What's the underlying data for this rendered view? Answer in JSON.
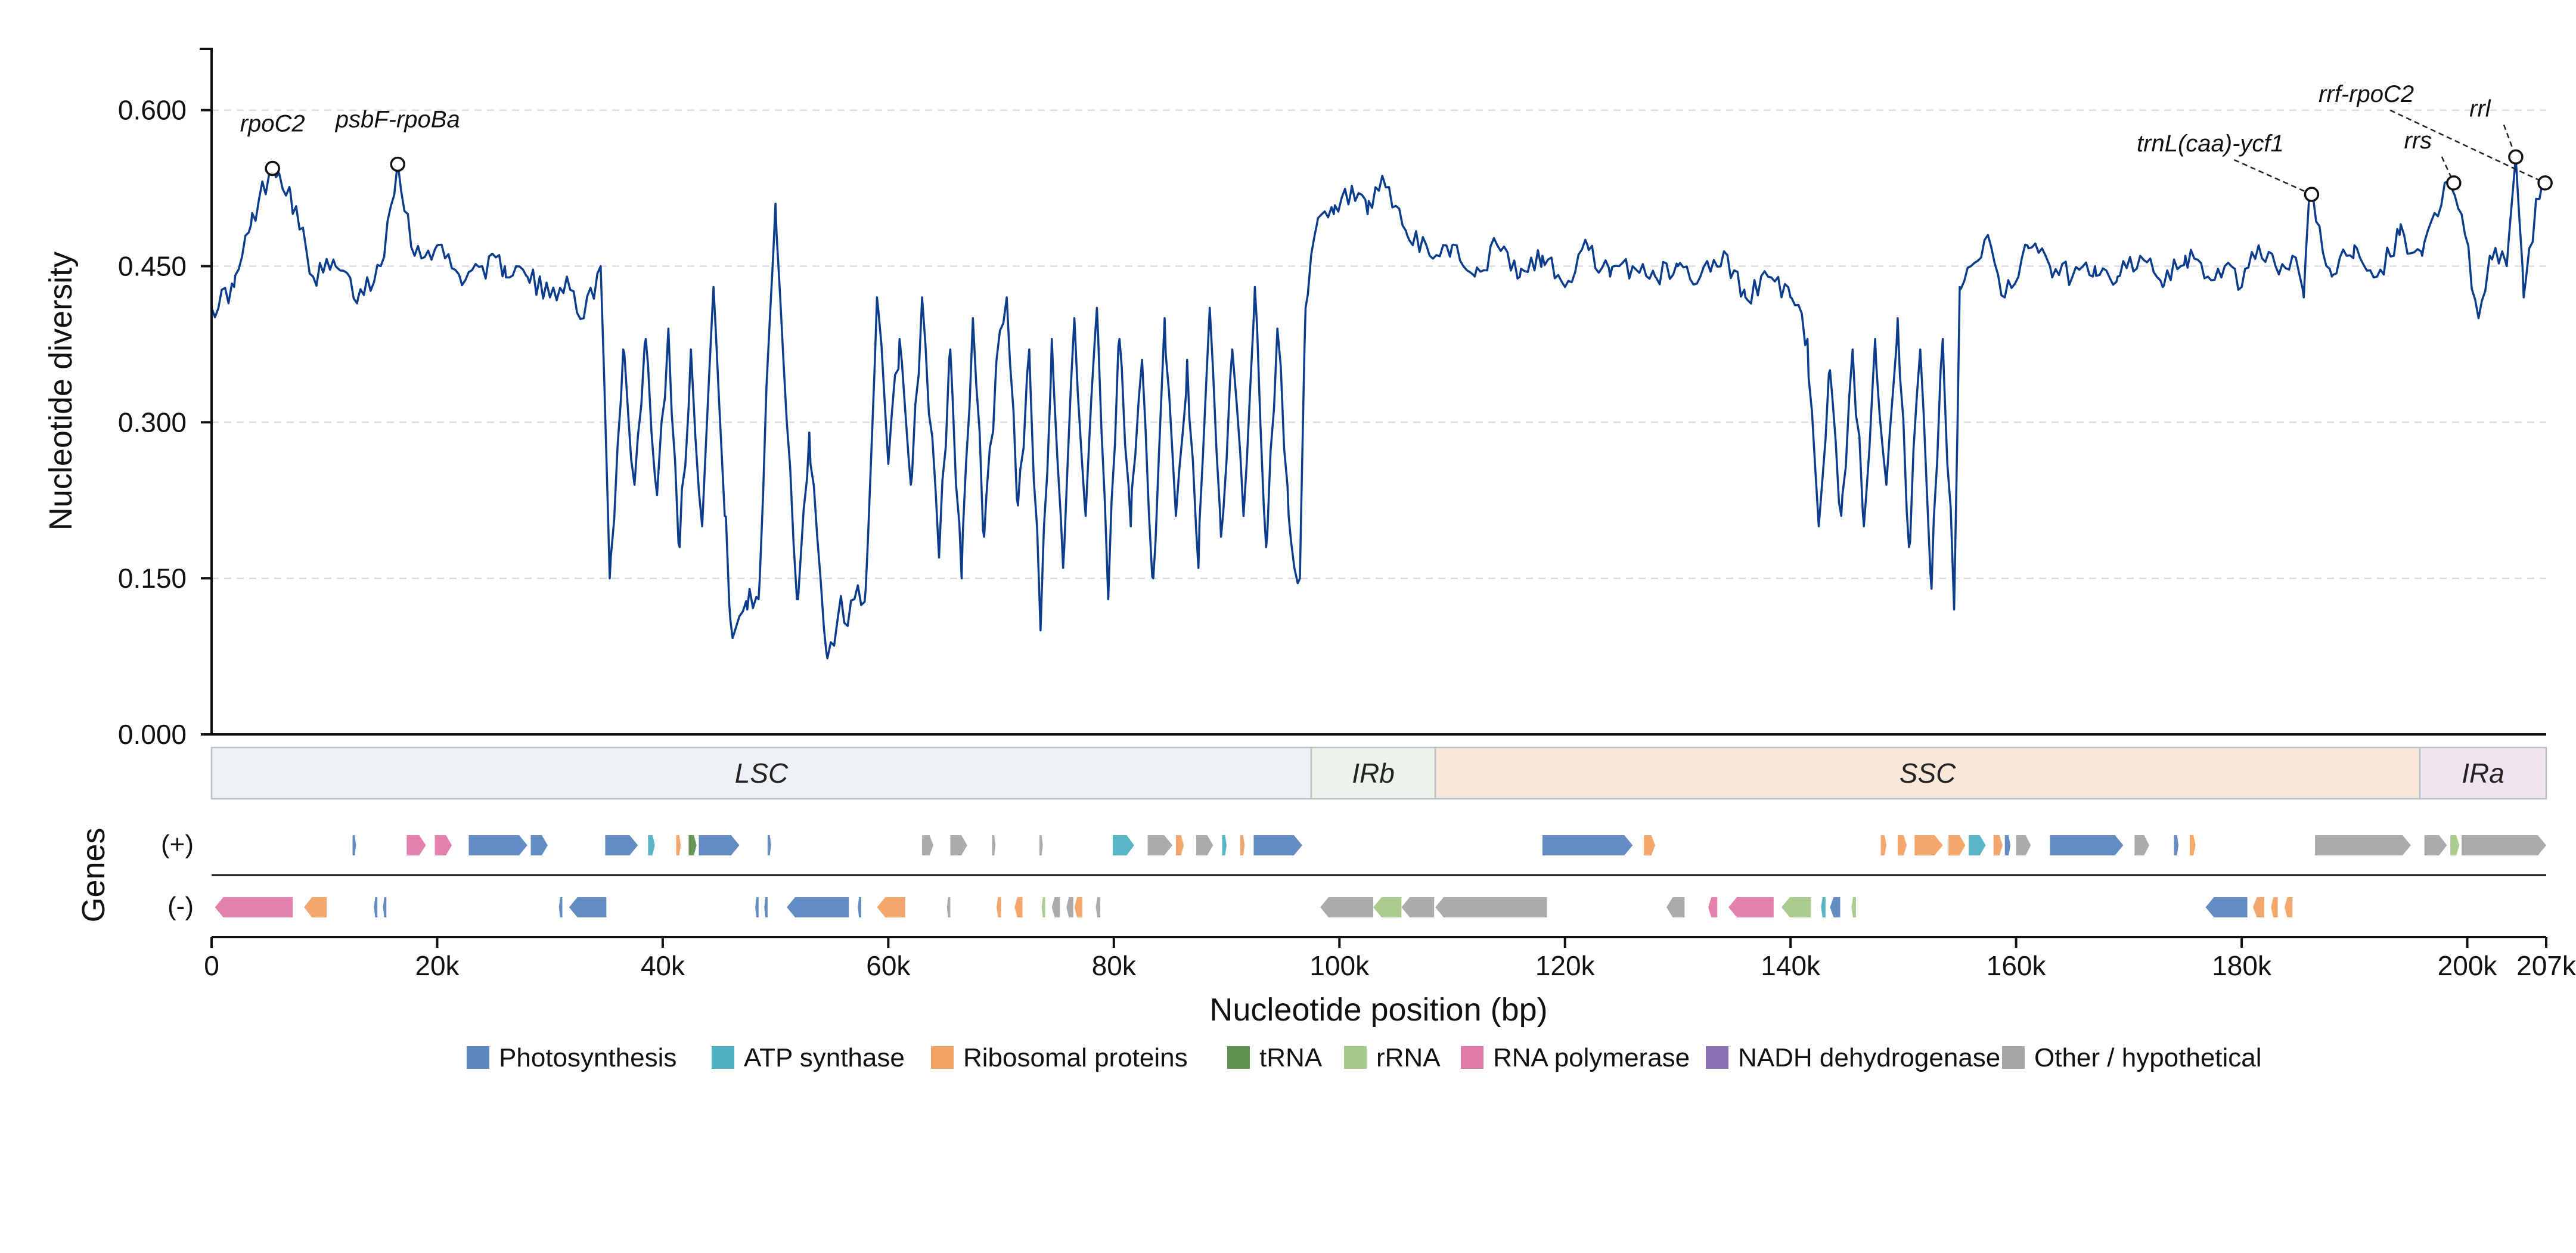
{
  "chart_data": {
    "type": "line",
    "xlabel": "Nucleotide position (bp)",
    "ylabel": "Nucleotide diversity",
    "genes_label": "Genes",
    "strand_labels": [
      "(+)",
      "(-)"
    ],
    "xlim": [
      0,
      207000
    ],
    "ylim": [
      0,
      0.66
    ],
    "y_ticks": [
      0.0,
      0.15,
      0.3,
      0.45,
      0.6
    ],
    "y_tick_labels": [
      "0.000",
      "0.150",
      "0.300",
      "0.450",
      "0.600"
    ],
    "x_ticks": [
      0,
      20000,
      40000,
      60000,
      80000,
      100000,
      120000,
      140000,
      160000,
      180000,
      200000,
      207000
    ],
    "x_tick_labels": [
      "0",
      "20k",
      "40k",
      "60k",
      "80k",
      "100k",
      "120k",
      "140k",
      "160k",
      "180k",
      "200k",
      "207k"
    ],
    "grid": "horizontal dashed",
    "line_color": "#0b3d8c",
    "keypoints": [
      [
        0,
        0.41
      ],
      [
        2000,
        0.43
      ],
      [
        3500,
        0.49
      ],
      [
        5400,
        0.55
      ],
      [
        7000,
        0.52
      ],
      [
        9000,
        0.44
      ],
      [
        11000,
        0.45
      ],
      [
        13000,
        0.42
      ],
      [
        15000,
        0.45
      ],
      [
        16500,
        0.55
      ],
      [
        18000,
        0.46
      ],
      [
        20000,
        0.47
      ],
      [
        22000,
        0.44
      ],
      [
        24000,
        0.45
      ],
      [
        26000,
        0.45
      ],
      [
        28000,
        0.44
      ],
      [
        30000,
        0.42
      ],
      [
        31500,
        0.44
      ],
      [
        33000,
        0.4
      ],
      [
        34500,
        0.45
      ],
      [
        35300,
        0.15
      ],
      [
        36500,
        0.37
      ],
      [
        37500,
        0.24
      ],
      [
        38500,
        0.38
      ],
      [
        39500,
        0.23
      ],
      [
        40500,
        0.39
      ],
      [
        41500,
        0.18
      ],
      [
        42500,
        0.37
      ],
      [
        43500,
        0.2
      ],
      [
        44500,
        0.43
      ],
      [
        45500,
        0.21
      ],
      [
        46000,
        0.11
      ],
      [
        47500,
        0.12
      ],
      [
        48500,
        0.13
      ],
      [
        49500,
        0.4
      ],
      [
        50000,
        0.51
      ],
      [
        51000,
        0.3
      ],
      [
        52000,
        0.13
      ],
      [
        53000,
        0.29
      ],
      [
        54500,
        0.08
      ],
      [
        55500,
        0.11
      ],
      [
        57000,
        0.13
      ],
      [
        58000,
        0.14
      ],
      [
        59000,
        0.42
      ],
      [
        60000,
        0.26
      ],
      [
        61000,
        0.38
      ],
      [
        62000,
        0.24
      ],
      [
        63000,
        0.42
      ],
      [
        64500,
        0.17
      ],
      [
        65500,
        0.37
      ],
      [
        66500,
        0.15
      ],
      [
        67500,
        0.4
      ],
      [
        68500,
        0.19
      ],
      [
        69500,
        0.34
      ],
      [
        70500,
        0.42
      ],
      [
        71500,
        0.22
      ],
      [
        72500,
        0.37
      ],
      [
        73500,
        0.1
      ],
      [
        74500,
        0.38
      ],
      [
        75500,
        0.16
      ],
      [
        76500,
        0.4
      ],
      [
        77500,
        0.21
      ],
      [
        78500,
        0.41
      ],
      [
        79500,
        0.13
      ],
      [
        80500,
        0.38
      ],
      [
        81500,
        0.2
      ],
      [
        82500,
        0.36
      ],
      [
        83500,
        0.15
      ],
      [
        84500,
        0.4
      ],
      [
        85500,
        0.21
      ],
      [
        86500,
        0.36
      ],
      [
        87500,
        0.16
      ],
      [
        88500,
        0.41
      ],
      [
        89500,
        0.19
      ],
      [
        90500,
        0.37
      ],
      [
        91500,
        0.21
      ],
      [
        92500,
        0.43
      ],
      [
        93500,
        0.18
      ],
      [
        94500,
        0.39
      ],
      [
        95500,
        0.21
      ],
      [
        96500,
        0.15
      ],
      [
        97000,
        0.41
      ],
      [
        98000,
        0.49
      ],
      [
        99500,
        0.5
      ],
      [
        101000,
        0.52
      ],
      [
        102500,
        0.5
      ],
      [
        104000,
        0.53
      ],
      [
        106000,
        0.48
      ],
      [
        108000,
        0.46
      ],
      [
        110000,
        0.47
      ],
      [
        112000,
        0.44
      ],
      [
        114000,
        0.47
      ],
      [
        116000,
        0.44
      ],
      [
        118000,
        0.46
      ],
      [
        120000,
        0.43
      ],
      [
        122000,
        0.47
      ],
      [
        124000,
        0.44
      ],
      [
        126000,
        0.45
      ],
      [
        128000,
        0.44
      ],
      [
        130000,
        0.45
      ],
      [
        132000,
        0.44
      ],
      [
        134000,
        0.46
      ],
      [
        136000,
        0.42
      ],
      [
        138000,
        0.44
      ],
      [
        140000,
        0.42
      ],
      [
        141500,
        0.38
      ],
      [
        142500,
        0.2
      ],
      [
        143500,
        0.35
      ],
      [
        144500,
        0.21
      ],
      [
        145500,
        0.37
      ],
      [
        146500,
        0.2
      ],
      [
        147500,
        0.38
      ],
      [
        148500,
        0.24
      ],
      [
        149500,
        0.4
      ],
      [
        150500,
        0.18
      ],
      [
        151500,
        0.37
      ],
      [
        152500,
        0.14
      ],
      [
        153500,
        0.38
      ],
      [
        154500,
        0.12
      ],
      [
        155000,
        0.43
      ],
      [
        156000,
        0.45
      ],
      [
        157500,
        0.48
      ],
      [
        159000,
        0.42
      ],
      [
        161000,
        0.47
      ],
      [
        163000,
        0.45
      ],
      [
        165000,
        0.44
      ],
      [
        167000,
        0.45
      ],
      [
        169000,
        0.44
      ],
      [
        171000,
        0.46
      ],
      [
        173000,
        0.43
      ],
      [
        175000,
        0.46
      ],
      [
        177000,
        0.44
      ],
      [
        178500,
        0.45
      ],
      [
        180000,
        0.43
      ],
      [
        181500,
        0.47
      ],
      [
        183000,
        0.45
      ],
      [
        184500,
        0.46
      ],
      [
        185500,
        0.42
      ],
      [
        186000,
        0.52
      ],
      [
        188000,
        0.44
      ],
      [
        190000,
        0.47
      ],
      [
        192000,
        0.44
      ],
      [
        194000,
        0.48
      ],
      [
        196000,
        0.46
      ],
      [
        198000,
        0.53
      ],
      [
        199500,
        0.5
      ],
      [
        201000,
        0.4
      ],
      [
        202000,
        0.46
      ],
      [
        203500,
        0.45
      ],
      [
        204300,
        0.555
      ],
      [
        205000,
        0.42
      ],
      [
        206000,
        0.5
      ],
      [
        207000,
        0.53
      ]
    ],
    "peaks": [
      {
        "label": "rpoC2",
        "x": 5400,
        "y": 0.544
      },
      {
        "label": "psbF-rpoBa",
        "x": 16500,
        "y": 0.548
      },
      {
        "label": "trnL(caa)-ycf1",
        "x": 186200,
        "y": 0.519
      },
      {
        "label": "rrs",
        "x": 198800,
        "y": 0.53
      },
      {
        "label": "rrf-rpoC2",
        "x": 206900,
        "y": 0.53
      },
      {
        "label": "rrl",
        "x": 204300,
        "y": 0.555
      }
    ],
    "regions": [
      {
        "label": "LSC",
        "start": 0,
        "end": 97500,
        "color": "#eef2f5"
      },
      {
        "label": "IRb",
        "start": 97500,
        "end": 108500,
        "color": "#ecf3ea"
      },
      {
        "label": "SSC",
        "start": 108500,
        "end": 195800,
        "color": "#f8e8da"
      },
      {
        "label": "IRa",
        "start": 195800,
        "end": 207000,
        "color": "#eee5ef"
      }
    ],
    "legend": [
      {
        "label": "Photosynthesis",
        "color": "#5b86c0"
      },
      {
        "label": "ATP synthase",
        "color": "#4fb2c4"
      },
      {
        "label": "Ribosomal proteins",
        "color": "#f2a264"
      },
      {
        "label": "tRNA",
        "color": "#5f9150"
      },
      {
        "label": "rRNA",
        "color": "#a6c98a"
      },
      {
        "label": "RNA polymerase",
        "color": "#e17aa8"
      },
      {
        "label": "NADH dehydrogenase",
        "color": "#8a70b3"
      },
      {
        "label": "Other / hypothetical",
        "color": "#a7a7a7"
      }
    ],
    "genes": [
      {
        "strand": "+",
        "start": 12500,
        "end": 12800,
        "category": "Photosynthesis"
      },
      {
        "strand": "+",
        "start": 17300,
        "end": 19000,
        "category": "RNA polymerase"
      },
      {
        "strand": "+",
        "start": 19800,
        "end": 21300,
        "category": "RNA polymerase"
      },
      {
        "strand": "+",
        "start": 22800,
        "end": 28000,
        "category": "Photosynthesis"
      },
      {
        "strand": "+",
        "start": 28300,
        "end": 29800,
        "category": "Photosynthesis"
      },
      {
        "strand": "+",
        "start": 34900,
        "end": 37800,
        "category": "Photosynthesis"
      },
      {
        "strand": "+",
        "start": 38700,
        "end": 39300,
        "category": "ATP synthase"
      },
      {
        "strand": "+",
        "start": 41200,
        "end": 41600,
        "category": "Ribosomal proteins"
      },
      {
        "strand": "+",
        "start": 42300,
        "end": 43000,
        "category": "tRNA"
      },
      {
        "strand": "+",
        "start": 43200,
        "end": 46800,
        "category": "Photosynthesis"
      },
      {
        "strand": "+",
        "start": 49300,
        "end": 49600,
        "category": "Photosynthesis"
      },
      {
        "strand": "+",
        "start": 63000,
        "end": 64000,
        "category": "Other / hypothetical"
      },
      {
        "strand": "+",
        "start": 65500,
        "end": 67000,
        "category": "Other / hypothetical"
      },
      {
        "strand": "+",
        "start": 69200,
        "end": 69500,
        "category": "Other / hypothetical"
      },
      {
        "strand": "+",
        "start": 73400,
        "end": 73700,
        "category": "Other / hypothetical"
      },
      {
        "strand": "+",
        "start": 79900,
        "end": 81800,
        "category": "ATP synthase"
      },
      {
        "strand": "+",
        "start": 83000,
        "end": 85200,
        "category": "Other / hypothetical"
      },
      {
        "strand": "+",
        "start": 85500,
        "end": 86200,
        "category": "Ribosomal proteins"
      },
      {
        "strand": "+",
        "start": 87300,
        "end": 88800,
        "category": "Other / hypothetical"
      },
      {
        "strand": "+",
        "start": 89600,
        "end": 90000,
        "category": "ATP synthase"
      },
      {
        "strand": "+",
        "start": 91200,
        "end": 91600,
        "category": "Ribosomal proteins"
      },
      {
        "strand": "+",
        "start": 92400,
        "end": 96700,
        "category": "Photosynthesis"
      },
      {
        "strand": "+",
        "start": 118000,
        "end": 126000,
        "category": "Photosynthesis"
      },
      {
        "strand": "+",
        "start": 127000,
        "end": 128000,
        "category": "Ribosomal proteins"
      },
      {
        "strand": "+",
        "start": 148000,
        "end": 148500,
        "category": "Ribosomal proteins"
      },
      {
        "strand": "+",
        "start": 149500,
        "end": 150300,
        "category": "Ribosomal proteins"
      },
      {
        "strand": "+",
        "start": 151000,
        "end": 153500,
        "category": "Ribosomal proteins"
      },
      {
        "strand": "+",
        "start": 154000,
        "end": 155500,
        "category": "Ribosomal proteins"
      },
      {
        "strand": "+",
        "start": 155800,
        "end": 157300,
        "category": "ATP synthase"
      },
      {
        "strand": "+",
        "start": 158000,
        "end": 158800,
        "category": "Ribosomal proteins"
      },
      {
        "strand": "+",
        "start": 159000,
        "end": 159500,
        "category": "Photosynthesis"
      },
      {
        "strand": "+",
        "start": 160000,
        "end": 161300,
        "category": "Other / hypothetical"
      },
      {
        "strand": "+",
        "start": 163000,
        "end": 169500,
        "category": "Photosynthesis"
      },
      {
        "strand": "+",
        "start": 170500,
        "end": 171800,
        "category": "Other / hypothetical"
      },
      {
        "strand": "+",
        "start": 174000,
        "end": 174400,
        "category": "Photosynthesis"
      },
      {
        "strand": "+",
        "start": 175400,
        "end": 175900,
        "category": "Ribosomal proteins"
      },
      {
        "strand": "+",
        "start": 186500,
        "end": 195000,
        "category": "Other / hypothetical"
      },
      {
        "strand": "+",
        "start": 196200,
        "end": 198200,
        "category": "Other / hypothetical"
      },
      {
        "strand": "+",
        "start": 198500,
        "end": 199300,
        "category": "rRNA"
      },
      {
        "strand": "+",
        "start": 199500,
        "end": 207000,
        "category": "Other / hypothetical"
      },
      {
        "strand": "-",
        "start": 300,
        "end": 7200,
        "category": "RNA polymerase"
      },
      {
        "strand": "-",
        "start": 8200,
        "end": 10200,
        "category": "Ribosomal proteins"
      },
      {
        "strand": "-",
        "start": 14400,
        "end": 14700,
        "category": "Photosynthesis"
      },
      {
        "strand": "-",
        "start": 15200,
        "end": 15500,
        "category": "Photosynthesis"
      },
      {
        "strand": "-",
        "start": 30800,
        "end": 31100,
        "category": "Photosynthesis"
      },
      {
        "strand": "-",
        "start": 31700,
        "end": 35000,
        "category": "Photosynthesis"
      },
      {
        "strand": "-",
        "start": 48200,
        "end": 48500,
        "category": "Photosynthesis"
      },
      {
        "strand": "-",
        "start": 49000,
        "end": 49300,
        "category": "Photosynthesis"
      },
      {
        "strand": "-",
        "start": 51000,
        "end": 56500,
        "category": "Photosynthesis"
      },
      {
        "strand": "-",
        "start": 57300,
        "end": 57600,
        "category": "Photosynthesis"
      },
      {
        "strand": "-",
        "start": 59000,
        "end": 61500,
        "category": "Ribosomal proteins"
      },
      {
        "strand": "-",
        "start": 65200,
        "end": 65500,
        "category": "Other / hypothetical"
      },
      {
        "strand": "-",
        "start": 69600,
        "end": 70000,
        "category": "Ribosomal proteins"
      },
      {
        "strand": "-",
        "start": 71200,
        "end": 71900,
        "category": "Ribosomal proteins"
      },
      {
        "strand": "-",
        "start": 73600,
        "end": 73900,
        "category": "rRNA"
      },
      {
        "strand": "-",
        "start": 74500,
        "end": 75200,
        "category": "Other / hypothetical"
      },
      {
        "strand": "-",
        "start": 75800,
        "end": 76400,
        "category": "Other / hypothetical"
      },
      {
        "strand": "-",
        "start": 76500,
        "end": 77200,
        "category": "Ribosomal proteins"
      },
      {
        "strand": "-",
        "start": 78400,
        "end": 78800,
        "category": "Other / hypothetical"
      },
      {
        "strand": "-",
        "start": 98300,
        "end": 103000,
        "category": "Other / hypothetical"
      },
      {
        "strand": "-",
        "start": 103000,
        "end": 105500,
        "category": "rRNA"
      },
      {
        "strand": "-",
        "start": 105500,
        "end": 108400,
        "category": "Other / hypothetical"
      },
      {
        "strand": "-",
        "start": 108500,
        "end": 118400,
        "category": "Other / hypothetical"
      },
      {
        "strand": "-",
        "start": 129000,
        "end": 130600,
        "category": "Other / hypothetical"
      },
      {
        "strand": "-",
        "start": 132700,
        "end": 133500,
        "category": "RNA polymerase"
      },
      {
        "strand": "-",
        "start": 134500,
        "end": 138500,
        "category": "RNA polymerase"
      },
      {
        "strand": "-",
        "start": 139200,
        "end": 141800,
        "category": "rRNA"
      },
      {
        "strand": "-",
        "start": 142700,
        "end": 143100,
        "category": "ATP synthase"
      },
      {
        "strand": "-",
        "start": 143500,
        "end": 144400,
        "category": "Photosynthesis"
      },
      {
        "strand": "-",
        "start": 145400,
        "end": 145800,
        "category": "rRNA"
      },
      {
        "strand": "-",
        "start": 176800,
        "end": 180500,
        "category": "Photosynthesis"
      },
      {
        "strand": "-",
        "start": 181000,
        "end": 182000,
        "category": "Ribosomal proteins"
      },
      {
        "strand": "-",
        "start": 182600,
        "end": 183200,
        "category": "Ribosomal proteins"
      },
      {
        "strand": "-",
        "start": 183800,
        "end": 184500,
        "category": "Ribosomal proteins"
      }
    ]
  }
}
